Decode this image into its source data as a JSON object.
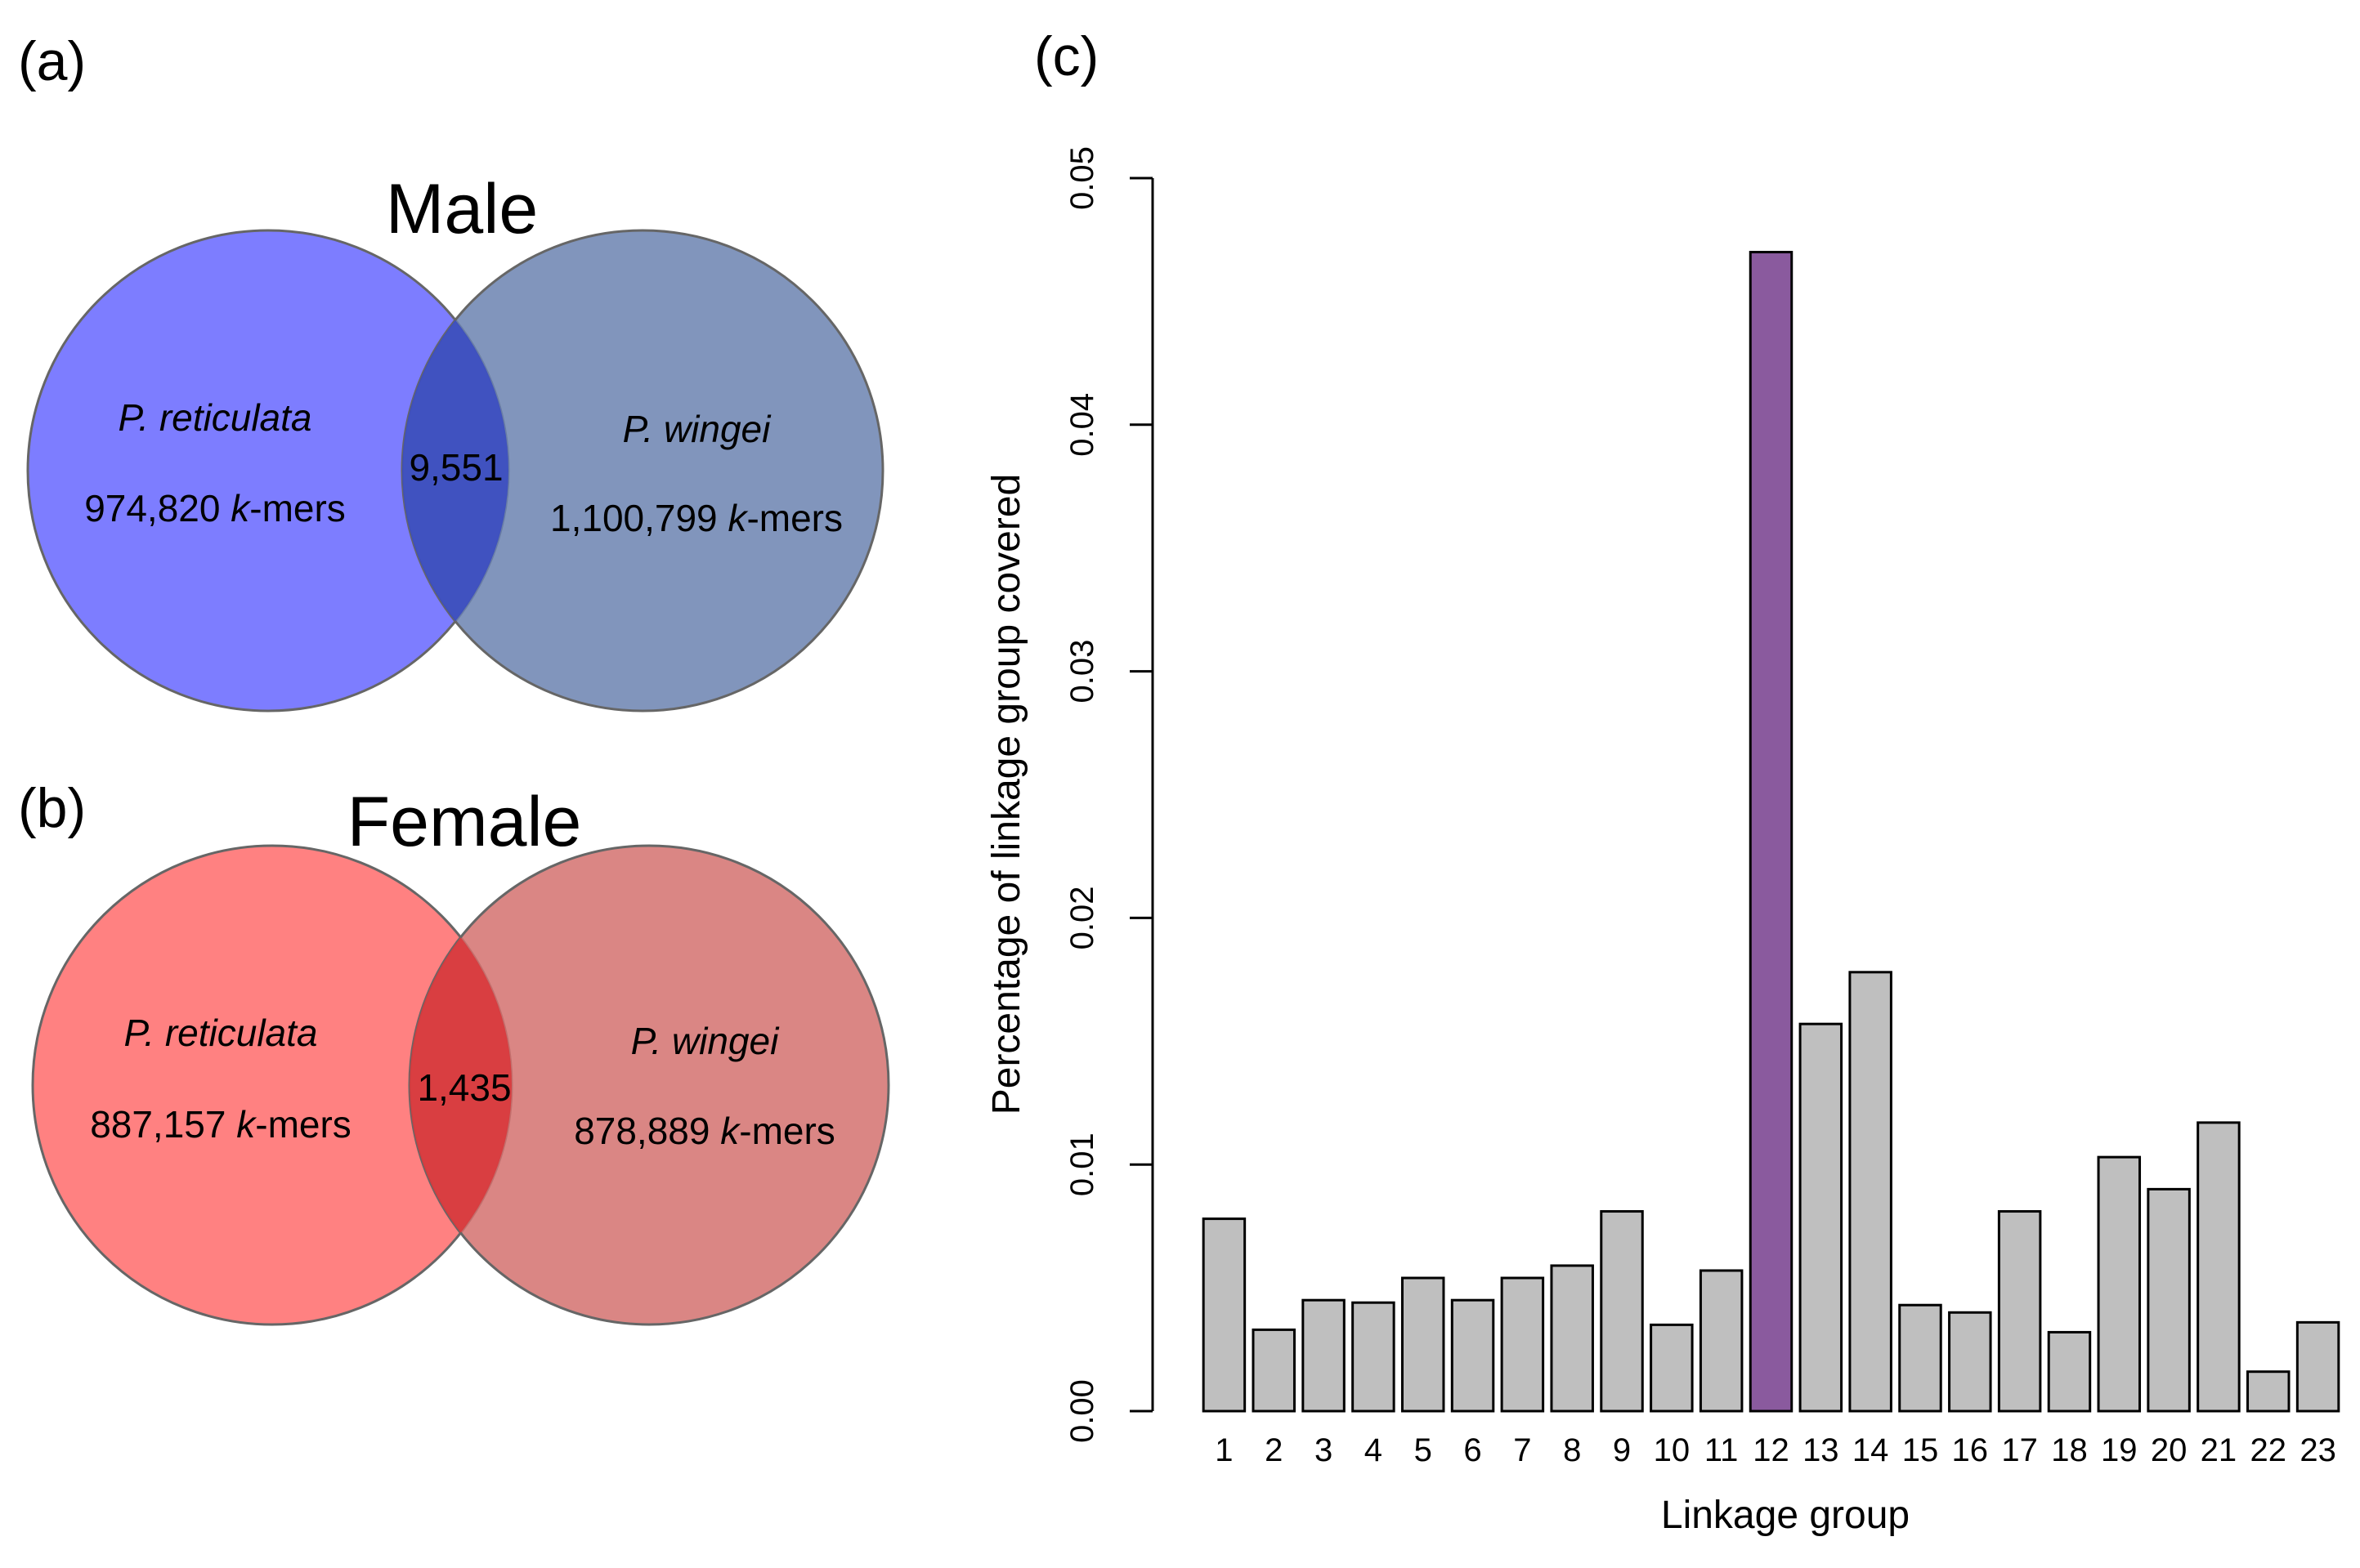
{
  "panels": {
    "a": {
      "label": "(a)",
      "title": "Male",
      "left": {
        "species": "P. reticulata",
        "count": "974,820",
        "unit_italic": "k",
        "unit_rest": "-mers",
        "color": "#6666ff"
      },
      "right": {
        "species": "P. wingei",
        "count": "1,100,799",
        "unit_italic": "k",
        "unit_rest": "-mers",
        "color": "#6b82b0"
      },
      "overlap": "9,551",
      "overlap_color": "#3b4cc0"
    },
    "b": {
      "label": "(b)",
      "title": "Female",
      "left": {
        "species": "P. reticulata",
        "count": "887,157",
        "unit_italic": "k",
        "unit_rest": "-mers",
        "color": "#ff6b6b"
      },
      "right": {
        "species": "P. wingei",
        "count": "878,889",
        "unit_italic": "k",
        "unit_rest": "-mers",
        "color": "#d4716f"
      },
      "overlap": "1,435",
      "overlap_color": "#d8383c"
    },
    "c": {
      "label": "(c)"
    }
  },
  "chart_data": {
    "type": "bar",
    "xlabel": "Linkage group",
    "ylabel": "Percentage of linkage group covered",
    "ylim": [
      0,
      0.05
    ],
    "yticks": [
      "0.00",
      "0.01",
      "0.02",
      "0.03",
      "0.04",
      "0.05"
    ],
    "categories": [
      "1",
      "2",
      "3",
      "4",
      "5",
      "6",
      "7",
      "8",
      "9",
      "10",
      "11",
      "12",
      "13",
      "14",
      "15",
      "16",
      "17",
      "18",
      "19",
      "20",
      "21",
      "22",
      "23"
    ],
    "values": [
      0.0078,
      0.0033,
      0.0045,
      0.0044,
      0.0054,
      0.0045,
      0.0054,
      0.0059,
      0.0081,
      0.0035,
      0.0057,
      0.047,
      0.0157,
      0.0178,
      0.0043,
      0.004,
      0.0081,
      0.0032,
      0.0103,
      0.009,
      0.0117,
      0.0016,
      0.0036
    ],
    "highlight_index": 11,
    "bar_color": "#bfbfbf",
    "highlight_color": "#8a5a9e",
    "edge_color": "#000000"
  }
}
